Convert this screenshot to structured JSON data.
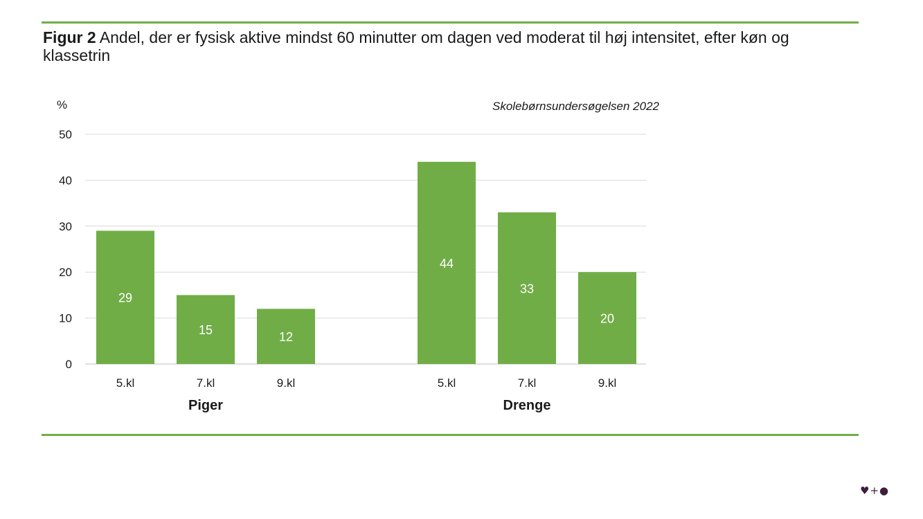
{
  "figure": {
    "label": "Figur 2",
    "title": "Andel, der er fysisk aktive mindst 60 minutter om dagen ved moderat til høj intensitet, efter køn og klassetrin",
    "source": "Skolebørnsundersøgelsen 2022"
  },
  "logo": {
    "text": "♥+●"
  },
  "colors": {
    "bar": "#70ad47",
    "rule": "#70ad47",
    "grid": "#d9d9d9"
  },
  "chart_data": {
    "type": "bar",
    "ylabel": "%",
    "ylim": [
      0,
      50
    ],
    "yticks": [
      0,
      10,
      20,
      30,
      40,
      50
    ],
    "grid": true,
    "groups": [
      {
        "name": "Piger",
        "categories": [
          "5.kl",
          "7.kl",
          "9.kl"
        ],
        "values": [
          29,
          15,
          12
        ]
      },
      {
        "name": "Drenge",
        "categories": [
          "5.kl",
          "7.kl",
          "9.kl"
        ],
        "values": [
          44,
          33,
          20
        ]
      }
    ]
  }
}
